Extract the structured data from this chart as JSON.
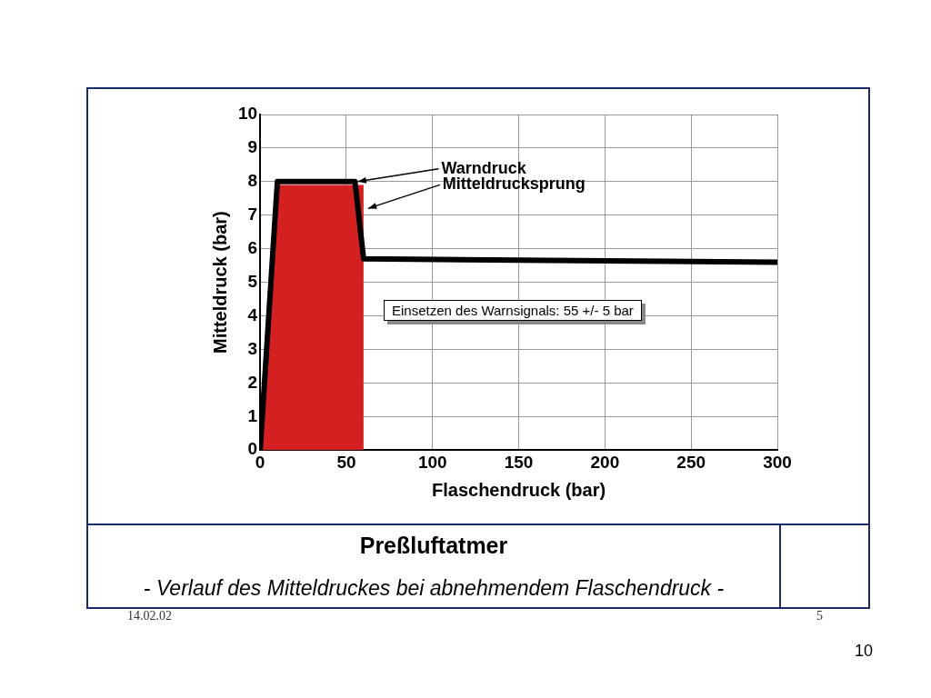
{
  "chart_data": {
    "type": "line",
    "title": "Preßluftatmer",
    "subtitle": "- Verlauf des Mitteldruckes bei abnehmendem Flaschendruck -",
    "xlabel": "Flaschendruck (bar)",
    "ylabel": "Mitteldruck (bar)",
    "series": [
      {
        "type": "area",
        "color": "#d42020",
        "x": [
          0,
          10,
          60
        ],
        "values": [
          0,
          7.9,
          7.9
        ]
      },
      {
        "color": "#000000",
        "x": [
          0,
          10,
          55,
          60,
          300
        ],
        "values": [
          0,
          8,
          8,
          5.7,
          5.6
        ]
      }
    ],
    "xlim": [
      0,
      300
    ],
    "xticks": [
      0,
      50,
      100,
      150,
      200,
      250,
      300
    ],
    "ylim": [
      0,
      10
    ],
    "yticks": [
      0,
      1,
      2,
      3,
      4,
      5,
      6,
      7,
      8,
      9,
      10
    ],
    "grid": true,
    "legend": false,
    "marker": "none",
    "line_style": "solid",
    "annotations": [
      {
        "text": "Warndruck",
        "x": 55,
        "y": 8
      },
      {
        "text": "Mitteldrucksprung",
        "x": 61,
        "y": 7.2
      },
      "Einsetzen des Warnsignals: 55 +/- 5 bar",
      "14.02.02",
      "5",
      "10"
    ]
  }
}
